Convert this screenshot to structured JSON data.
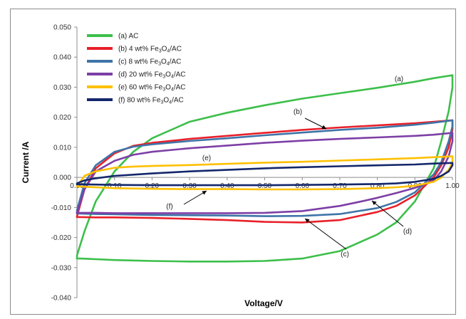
{
  "chart_data": {
    "type": "line",
    "xlabel": "Voltage/V",
    "ylabel": "Current /A",
    "xlim": [
      0.0,
      1.0
    ],
    "ylim": [
      -0.04,
      0.05
    ],
    "x_ticks": [
      "0.00",
      "0.10",
      "0.20",
      "0.30",
      "0.40",
      "0.50",
      "0.60",
      "0.70",
      "0.80",
      "0.90",
      "1.00"
    ],
    "y_ticks": [
      "0.050",
      "0.040",
      "0.030",
      "0.020",
      "0.010",
      "0.000",
      "-0.010",
      "-0.020",
      "-0.030",
      "-0.040"
    ],
    "grid": false,
    "legend_position": "top-left",
    "series": [
      {
        "name": "(a)  AC",
        "label_parts": [
          "(a)  AC"
        ],
        "color": "#3cbf4a",
        "annotation": "(a)",
        "x": [
          0.0,
          0.02,
          0.05,
          0.1,
          0.15,
          0.2,
          0.3,
          0.4,
          0.5,
          0.6,
          0.7,
          0.8,
          0.9,
          0.95,
          1.0,
          1.0,
          0.99,
          0.97,
          0.95,
          0.9,
          0.85,
          0.8,
          0.7,
          0.6,
          0.5,
          0.4,
          0.3,
          0.2,
          0.1,
          0.05,
          0.01,
          0.0,
          0.0
        ],
        "y": [
          -0.026,
          -0.018,
          -0.008,
          0.002,
          0.0085,
          0.013,
          0.0185,
          0.0215,
          0.024,
          0.0262,
          0.028,
          0.0298,
          0.0318,
          0.033,
          0.034,
          0.03,
          0.022,
          0.012,
          0.003,
          -0.008,
          -0.015,
          -0.019,
          -0.0245,
          -0.027,
          -0.0278,
          -0.028,
          -0.028,
          -0.0278,
          -0.0275,
          -0.0272,
          -0.027,
          -0.027,
          -0.026
        ]
      },
      {
        "name": "(b) 4 wt% Fe3O4/AC",
        "label_parts": [
          "(b) 4 wt% Fe",
          "3",
          "O",
          "4",
          "/AC"
        ],
        "color": "#e8202a",
        "annotation": "(b)",
        "x": [
          0.0,
          0.02,
          0.05,
          0.1,
          0.15,
          0.2,
          0.3,
          0.4,
          0.5,
          0.6,
          0.7,
          0.8,
          0.9,
          0.95,
          1.0,
          1.0,
          0.99,
          0.97,
          0.95,
          0.9,
          0.85,
          0.8,
          0.7,
          0.6,
          0.5,
          0.4,
          0.3,
          0.2,
          0.1,
          0.05,
          0.0,
          0.0
        ],
        "y": [
          -0.013,
          -0.004,
          0.003,
          0.008,
          0.0105,
          0.0115,
          0.0128,
          0.0138,
          0.0148,
          0.0158,
          0.0166,
          0.0173,
          0.018,
          0.0185,
          0.019,
          0.016,
          0.01,
          0.004,
          0.0,
          -0.006,
          -0.0095,
          -0.0115,
          -0.0142,
          -0.015,
          -0.0148,
          -0.0142,
          -0.0138,
          -0.0135,
          -0.0133,
          -0.0133,
          -0.0132,
          -0.013
        ]
      },
      {
        "name": "(c) 8 wt% Fe3O4/AC",
        "label_parts": [
          "(c) 8 wt% Fe",
          "3",
          "O",
          "4",
          "/AC"
        ],
        "color": "#3f74a8",
        "annotation": "(c)",
        "x": [
          0.0,
          0.02,
          0.05,
          0.1,
          0.15,
          0.2,
          0.3,
          0.4,
          0.5,
          0.6,
          0.7,
          0.8,
          0.9,
          0.95,
          1.0,
          1.0,
          0.99,
          0.97,
          0.95,
          0.9,
          0.85,
          0.8,
          0.7,
          0.6,
          0.5,
          0.4,
          0.3,
          0.2,
          0.1,
          0.05,
          0.0,
          0.0
        ],
        "y": [
          -0.011,
          -0.002,
          0.004,
          0.0085,
          0.0102,
          0.011,
          0.0121,
          0.013,
          0.014,
          0.0149,
          0.0158,
          0.0165,
          0.0175,
          0.0182,
          0.019,
          0.017,
          0.012,
          0.005,
          0.001,
          -0.005,
          -0.0082,
          -0.0102,
          -0.0122,
          -0.0128,
          -0.0129,
          -0.0127,
          -0.0126,
          -0.0125,
          -0.0123,
          -0.0122,
          -0.012,
          -0.011
        ]
      },
      {
        "name": "(d) 20 wt% Fe3O4/AC",
        "label_parts": [
          "(d) 20 wt% Fe",
          "3",
          "O",
          "4",
          "/AC"
        ],
        "color": "#7d3fa6",
        "annotation": "(d)",
        "x": [
          0.0,
          0.02,
          0.05,
          0.1,
          0.15,
          0.2,
          0.3,
          0.4,
          0.5,
          0.6,
          0.7,
          0.8,
          0.9,
          0.95,
          1.0,
          1.0,
          0.99,
          0.97,
          0.95,
          0.9,
          0.85,
          0.8,
          0.75,
          0.7,
          0.6,
          0.5,
          0.4,
          0.3,
          0.2,
          0.1,
          0.05,
          0.0,
          0.0
        ],
        "y": [
          -0.012,
          -0.004,
          0.002,
          0.0055,
          0.0075,
          0.0085,
          0.0097,
          0.0106,
          0.0115,
          0.0122,
          0.0128,
          0.0133,
          0.0138,
          0.0142,
          0.0148,
          0.012,
          0.007,
          0.002,
          -0.001,
          -0.0035,
          -0.0052,
          -0.0068,
          -0.0082,
          -0.0095,
          -0.0112,
          -0.0118,
          -0.0119,
          -0.0119,
          -0.0119,
          -0.0119,
          -0.0118,
          -0.0118,
          -0.012
        ]
      },
      {
        "name": "(e) 60 wt% Fe3O4/AC",
        "label_parts": [
          "(e) 60 wt% Fe",
          "3",
          "O",
          "4",
          "/AC"
        ],
        "color": "#ffc000",
        "annotation": "(e)",
        "x": [
          0.0,
          0.02,
          0.05,
          0.1,
          0.15,
          0.2,
          0.3,
          0.4,
          0.5,
          0.6,
          0.7,
          0.8,
          0.9,
          0.95,
          1.0,
          1.0,
          0.99,
          0.97,
          0.95,
          0.9,
          0.85,
          0.8,
          0.7,
          0.6,
          0.5,
          0.4,
          0.3,
          0.2,
          0.1,
          0.05,
          0.0,
          0.0
        ],
        "y": [
          -0.003,
          0.0005,
          0.002,
          0.0032,
          0.0036,
          0.0038,
          0.0041,
          0.0045,
          0.0049,
          0.0052,
          0.0056,
          0.006,
          0.0064,
          0.0067,
          0.007,
          0.005,
          0.0025,
          0.0,
          -0.0015,
          -0.0028,
          -0.0033,
          -0.0036,
          -0.0039,
          -0.004,
          -0.004,
          -0.0039,
          -0.0039,
          -0.0038,
          -0.0036,
          -0.0033,
          -0.003,
          -0.003
        ]
      },
      {
        "name": "(f) 80 wt% Fe3O4/AC",
        "label_parts": [
          "(f) 80 wt% Fe",
          "3",
          "O",
          "4",
          "/AC"
        ],
        "color": "#14276b",
        "annotation": "(f)",
        "x": [
          0.0,
          0.02,
          0.05,
          0.1,
          0.15,
          0.2,
          0.3,
          0.4,
          0.5,
          0.6,
          0.7,
          0.8,
          0.9,
          0.95,
          1.0,
          1.0,
          0.99,
          0.97,
          0.95,
          0.9,
          0.85,
          0.8,
          0.7,
          0.6,
          0.5,
          0.4,
          0.3,
          0.2,
          0.1,
          0.05,
          0.0,
          0.0
        ],
        "y": [
          -0.002,
          -0.001,
          -0.0003,
          0.0005,
          0.0009,
          0.0013,
          0.002,
          0.0025,
          0.003,
          0.0034,
          0.0037,
          0.004,
          0.0043,
          0.0046,
          0.0048,
          0.004,
          0.002,
          0.0005,
          -0.0005,
          -0.0015,
          -0.002,
          -0.0022,
          -0.0024,
          -0.0025,
          -0.0026,
          -0.0026,
          -0.0026,
          -0.0026,
          -0.0025,
          -0.0024,
          -0.0023,
          -0.002
        ]
      }
    ]
  }
}
